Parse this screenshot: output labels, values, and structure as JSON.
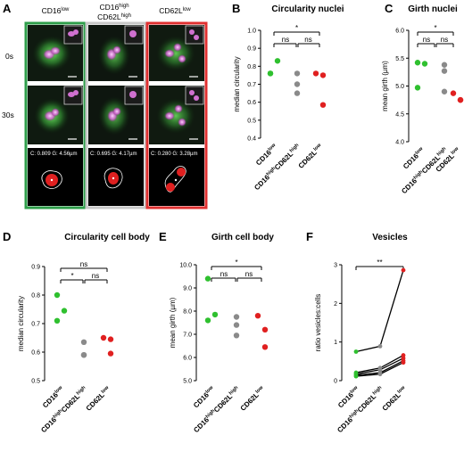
{
  "panel_a": {
    "label": "A",
    "col_headers": [
      {
        "main": "CD16",
        "sup": "low",
        "line2": ""
      },
      {
        "main": "CD16",
        "sup": "high",
        "line2": "CD62L",
        "sup2": "high"
      },
      {
        "main": "CD62L",
        "sup": "low",
        "line2": ""
      }
    ],
    "row_labels": [
      "0s",
      "30s"
    ],
    "measurements": [
      {
        "c": "C: 0.809",
        "g": "G: 4.56µm"
      },
      {
        "c": "C: 0.695",
        "g": "G: 4.17µm"
      },
      {
        "c": "C: 0.280",
        "g": "G: 3.28µm"
      }
    ],
    "frame_colors": [
      "#2e9e4a",
      "#c8c8c8",
      "#e03030"
    ]
  },
  "group_colors": {
    "cd16low": "#2fc02f",
    "cd16high": "#8a8a8a",
    "cd62llow": "#e02020"
  },
  "group_labels": [
    {
      "main": "CD16",
      "sup": "low"
    },
    {
      "main": "CD16",
      "sup": "high",
      "main2": "CD62L",
      "sub2": "high"
    },
    {
      "main": "CD62L",
      "sup": "low"
    }
  ],
  "chart_data": [
    {
      "panel": "B",
      "type": "scatter",
      "title": "Circularity nuclei",
      "ylabel": "median circularity",
      "ylim": [
        0.4,
        1.0
      ],
      "yticks": [
        "0.4",
        "0.5",
        "0.6",
        "0.7",
        "0.8",
        "0.9",
        "1.0"
      ],
      "series": [
        {
          "values": [
            0.76,
            0.83,
            0.76
          ]
        },
        {
          "values": [
            0.76,
            0.7,
            0.65
          ]
        },
        {
          "values": [
            0.76,
            0.75,
            0.585
          ]
        }
      ],
      "significance": {
        "top": "*",
        "left": "ns",
        "right": "ns"
      }
    },
    {
      "panel": "C",
      "type": "scatter",
      "title": "Girth nuclei",
      "ylabel": "mean girth (µm)",
      "ylim": [
        4.0,
        6.0
      ],
      "yticks": [
        "4.0",
        "4.5",
        "5.0",
        "5.5",
        "6.0"
      ],
      "series": [
        {
          "values": [
            5.42,
            5.4,
            4.97
          ]
        },
        {
          "values": [
            5.38,
            5.27,
            4.9
          ]
        },
        {
          "values": [
            4.87,
            4.75,
            4.75
          ]
        }
      ],
      "significance": {
        "top": "*",
        "left": "ns",
        "right": "ns"
      }
    },
    {
      "panel": "D",
      "type": "scatter",
      "title": "Circularity cell body",
      "ylabel": "median circularity",
      "ylim": [
        0.5,
        0.9
      ],
      "yticks": [
        "0.5",
        "0.6",
        "0.7",
        "0.8",
        "0.9"
      ],
      "series": [
        {
          "values": [
            0.8,
            0.745,
            0.71
          ]
        },
        {
          "values": [
            0.635,
            0.59,
            0.59
          ]
        },
        {
          "values": [
            0.65,
            0.645,
            0.595
          ]
        }
      ],
      "significance": {
        "top": "ns",
        "left": "*",
        "right": "ns"
      }
    },
    {
      "panel": "E",
      "type": "scatter",
      "title": "Girth cell body",
      "ylabel": "mean girth (µm)",
      "ylim": [
        5.0,
        10.0
      ],
      "yticks": [
        "5.0",
        "6.0",
        "7.0",
        "8.0",
        "9.0",
        "10.0"
      ],
      "series": [
        {
          "values": [
            9.4,
            7.85,
            7.6
          ]
        },
        {
          "values": [
            7.75,
            7.4,
            6.95
          ]
        },
        {
          "values": [
            7.8,
            7.2,
            6.45
          ]
        }
      ],
      "significance": {
        "top": "*",
        "left": "ns",
        "right": "ns"
      }
    },
    {
      "panel": "F",
      "type": "line",
      "title": "Vesicles",
      "ylabel": "ratio vesicles:cells",
      "ylim": [
        0,
        3.2
      ],
      "yticks": [
        "0",
        "1",
        "2",
        "3"
      ],
      "lines": [
        [
          0.8,
          0.95,
          3.05
        ],
        [
          0.22,
          0.35,
          0.7
        ],
        [
          0.18,
          0.3,
          0.62
        ],
        [
          0.15,
          0.22,
          0.55
        ],
        [
          0.12,
          0.18,
          0.5
        ]
      ],
      "significance": {
        "top": "**"
      }
    }
  ]
}
